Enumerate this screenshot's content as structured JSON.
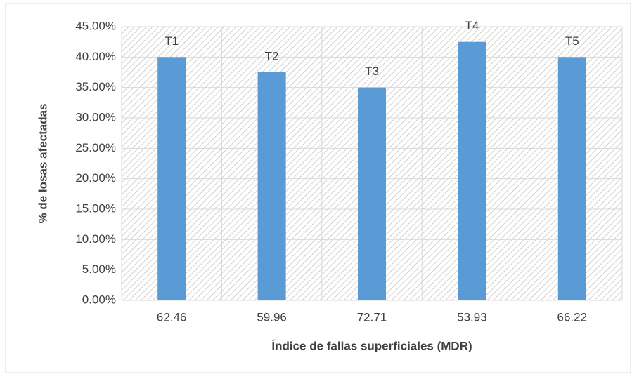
{
  "chart_data": {
    "type": "bar",
    "x_label": "Índice de fallas superficiales (MDR)",
    "y_label": "% de losas afectadas",
    "categories": [
      "62.46",
      "59.96",
      "72.71",
      "53.93",
      "66.22"
    ],
    "values": [
      40,
      37.5,
      35,
      42.5,
      40
    ],
    "labels": [
      "T1",
      "T2",
      "T3",
      "T4",
      "T5"
    ],
    "color": "#5b9bd5",
    "ylim": [
      0,
      45
    ],
    "yticks": [
      {
        "value": 0,
        "label": "0.00%"
      },
      {
        "value": 5,
        "label": "5.00%"
      },
      {
        "value": 10,
        "label": "10.00%"
      },
      {
        "value": 15,
        "label": "15.00%"
      },
      {
        "value": 20,
        "label": "20.00%"
      },
      {
        "value": 25,
        "label": "25.00%"
      },
      {
        "value": 30,
        "label": "30.00%"
      },
      {
        "value": 35,
        "label": "35.00%"
      },
      {
        "value": 40,
        "label": "40.00%"
      },
      {
        "value": 45,
        "label": "45.00%"
      }
    ],
    "grid": true
  }
}
